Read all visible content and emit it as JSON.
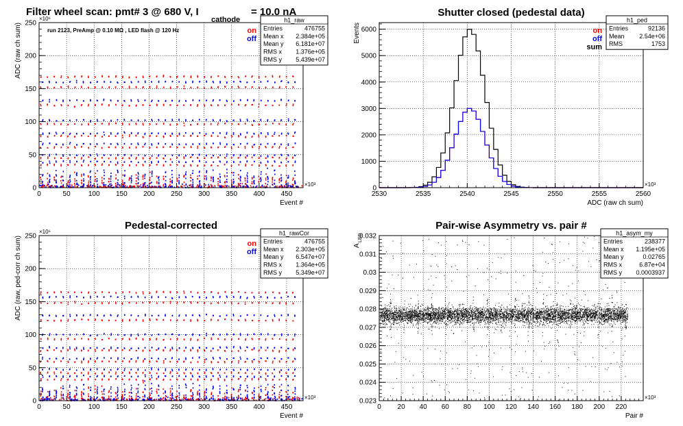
{
  "chart_data": [
    {
      "type": "scatter",
      "title": "Filter wheel scan: pmt#   3 @   680 V, I",
      "title_sub": "cathode",
      "title_tail": "= 10.0 nA",
      "annotation": "run 2123, PreAmp @ 0.10 MΩ , LED flash @  120 Hz",
      "xlabel": "Event #",
      "ylabel": "ADC (raw ch sum)",
      "x_exponent": "×10³",
      "y_exponent": "×10⁶",
      "xlim": [
        0,
        480
      ],
      "ylim": [
        0,
        250
      ],
      "x_ticks": [
        "0",
        "50",
        "100",
        "150",
        "200",
        "250",
        "300",
        "350",
        "400",
        "450"
      ],
      "y_ticks": [
        "0",
        "50",
        "100",
        "150",
        "200",
        "250"
      ],
      "grid": true,
      "legend": [
        {
          "label": "on",
          "color": "#ff0000"
        },
        {
          "label": "off",
          "color": "#0000ff"
        }
      ],
      "stats": {
        "name": "h1_raw",
        "rows": [
          [
            "Entries",
            "476755"
          ],
          [
            "Mean x",
            "2.384e+05"
          ],
          [
            "Mean y",
            "6.181e+07"
          ],
          [
            "RMS x",
            "1.376e+05"
          ],
          [
            "RMS y",
            "5.439e+07"
          ]
        ]
      },
      "levels": [
        168,
        160,
        152,
        132,
        125,
        102,
        96,
        82,
        78,
        66,
        61,
        49,
        45,
        39,
        34,
        20,
        14,
        9,
        4,
        1.5
      ]
    },
    {
      "type": "line",
      "title": "Shutter closed (pedestal data)",
      "xlabel": "ADC (raw ch sum)",
      "ylabel": "Events",
      "x_exponent": "×10³",
      "xlim": [
        2530,
        2560
      ],
      "ylim": [
        0,
        6250
      ],
      "x_ticks": [
        "2530",
        "2535",
        "2540",
        "2545",
        "2550",
        "2555",
        "2560"
      ],
      "y_ticks": [
        "0",
        "1000",
        "2000",
        "3000",
        "4000",
        "5000",
        "6000"
      ],
      "grid": true,
      "legend": [
        {
          "label": "on",
          "color": "#ff0000"
        },
        {
          "label": "off",
          "color": "#0000ff"
        },
        {
          "label": "sum",
          "color": "#000000"
        }
      ],
      "stats": {
        "name": "h1_ped",
        "rows": [
          [
            "Entries",
            "92136"
          ],
          [
            "Mean",
            "2.54e+06"
          ],
          [
            "RMS",
            "1753"
          ]
        ]
      },
      "series": [
        {
          "name": "sum",
          "mean": 2540.3,
          "sigma": 1.75,
          "peak": 6000
        },
        {
          "name": "on",
          "mean": 2540.3,
          "sigma": 1.75,
          "peak": 3000
        },
        {
          "name": "off",
          "mean": 2540.3,
          "sigma": 1.75,
          "peak": 3000
        }
      ]
    },
    {
      "type": "scatter",
      "title": "Pedestal-corrected",
      "xlabel": "Event #",
      "ylabel": "ADC (raw, ped-corr ch sum)",
      "x_exponent": "×10³",
      "y_exponent": "×10⁶",
      "xlim": [
        0,
        480
      ],
      "ylim": [
        0,
        250
      ],
      "x_ticks": [
        "0",
        "50",
        "100",
        "150",
        "200",
        "250",
        "300",
        "350",
        "400",
        "450"
      ],
      "y_ticks": [
        "0",
        "50",
        "100",
        "150",
        "200",
        "250"
      ],
      "grid": true,
      "legend": [
        {
          "label": "on",
          "color": "#ff0000"
        },
        {
          "label": "off",
          "color": "#0000ff"
        }
      ],
      "stats": {
        "name": "h1_rawCor",
        "rows": [
          [
            "Entries",
            "476755"
          ],
          [
            "Mean x",
            "2.303e+05"
          ],
          [
            "Mean y",
            "6.547e+07"
          ],
          [
            "RMS x",
            "1.364e+05"
          ],
          [
            "RMS y",
            "5.349e+07"
          ]
        ]
      },
      "levels": [
        164,
        157,
        148,
        129,
        122,
        100,
        93,
        80,
        76,
        64,
        59,
        47,
        42,
        37,
        32,
        18,
        12,
        7,
        3,
        0.5
      ]
    },
    {
      "type": "scatter",
      "title": "Pair-wise Asymmetry vs. pair #",
      "xlabel": "Pair #",
      "ylabel": "A",
      "ylabel_sub": "LED",
      "x_exponent": "×10³",
      "xlim": [
        0,
        240
      ],
      "ylim": [
        0.023,
        0.032
      ],
      "x_ticks": [
        "0",
        "20",
        "40",
        "60",
        "80",
        "100",
        "120",
        "140",
        "160",
        "180",
        "200",
        "220"
      ],
      "y_ticks": [
        "0.023",
        "0.024",
        "0.025",
        "0.026",
        "0.027",
        "0.028",
        "0.029",
        "0.03",
        "0.031",
        "0.032"
      ],
      "grid": true,
      "stats": {
        "name": "h1_asym_my",
        "rows": [
          [
            "Entries",
            "238377"
          ],
          [
            "Mean x",
            "1.195e+05"
          ],
          [
            "Mean y",
            "0.02765"
          ],
          [
            "RMS x",
            "6.87e+04"
          ],
          [
            "RMS y",
            "0.0003937"
          ]
        ]
      },
      "band": {
        "center": 0.02765,
        "halfwidth": 0.0005
      }
    }
  ]
}
